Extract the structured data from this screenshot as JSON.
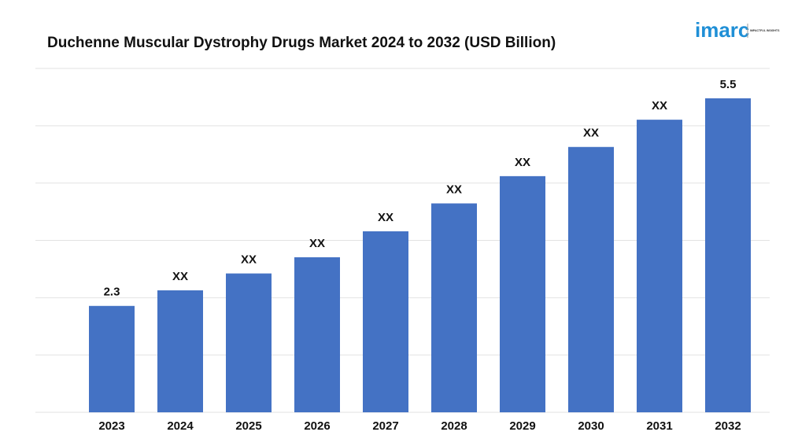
{
  "chart_data": {
    "type": "bar",
    "title": "Duchenne Muscular Dystrophy Drugs Market 2024 to 2032 (USD Billion)",
    "categories": [
      "2023",
      "2024",
      "2025",
      "2026",
      "2027",
      "2028",
      "2029",
      "2030",
      "2031",
      "2032"
    ],
    "values": [
      2.3,
      2.54,
      2.8,
      3.05,
      3.45,
      3.88,
      4.3,
      4.75,
      5.17,
      5.5
    ],
    "value_labels": [
      "2.3",
      "XX",
      "XX",
      "XX",
      "XX",
      "XX",
      "XX",
      "XX",
      "XX",
      "5.5"
    ],
    "color": "#4472c4",
    "ylim": [
      0.66,
      5.96
    ]
  },
  "logo": {
    "name": "imarc",
    "tagline": "IMPACTFUL INSIGHTS"
  }
}
